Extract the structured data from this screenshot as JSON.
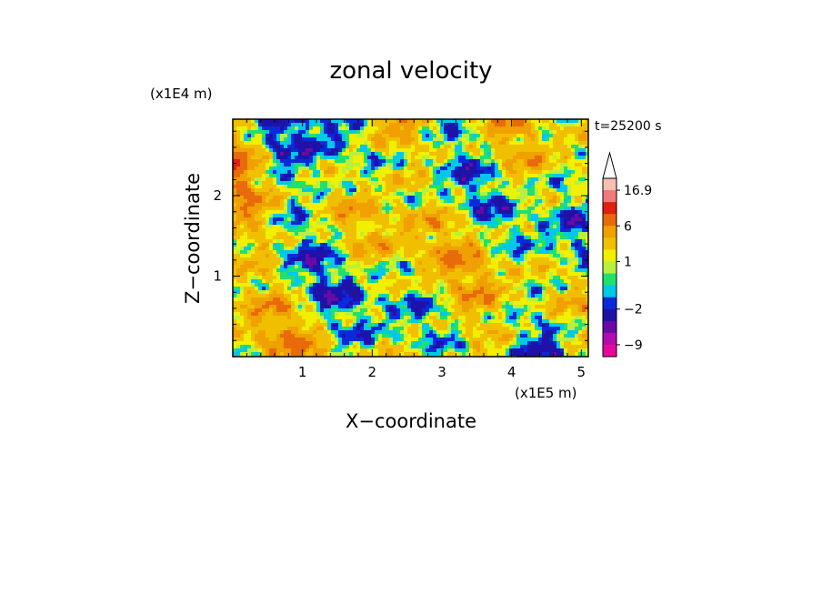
{
  "chart_data": {
    "type": "heatmap",
    "title": "zonal velocity",
    "xlabel": "X−coordinate",
    "ylabel": "Z−coordinate",
    "x_unit": "(x1E5 m)",
    "y_unit": "(x1E4 m)",
    "time_label": "t=25200 s",
    "xlim": [
      0,
      5.1
    ],
    "ylim": [
      0,
      2.95
    ],
    "x_ticks": [
      "1",
      "2",
      "3",
      "4",
      "5"
    ],
    "y_ticks": [
      "1",
      "2"
    ],
    "colorbar": {
      "max_label": "16.9",
      "labels": [
        "16.9",
        "6",
        "1",
        "−2",
        "−9"
      ],
      "levels_low_to_high": [
        {
          "value": -12,
          "color": "#e8079e"
        },
        {
          "value": -9,
          "color": "#b00db0"
        },
        {
          "value": -6,
          "color": "#6a0aa6"
        },
        {
          "value": -4,
          "color": "#1e12a8"
        },
        {
          "value": -2,
          "color": "#0a2ad8"
        },
        {
          "value": -1,
          "color": "#00c8e8"
        },
        {
          "value": 0,
          "color": "#20e070"
        },
        {
          "value": 0.5,
          "color": "#b8f040"
        },
        {
          "value": 1,
          "color": "#f0f000"
        },
        {
          "value": 2,
          "color": "#f0c000"
        },
        {
          "value": 4,
          "color": "#f0a000"
        },
        {
          "value": 6,
          "color": "#e86a0a"
        },
        {
          "value": 9,
          "color": "#e02010"
        },
        {
          "value": 12,
          "color": "#f07a7a"
        },
        {
          "value": 16.9,
          "color": "#f6c0b0"
        }
      ]
    },
    "field_description_values": "turbulent zonal velocity field, mostly between -2 and 6"
  }
}
